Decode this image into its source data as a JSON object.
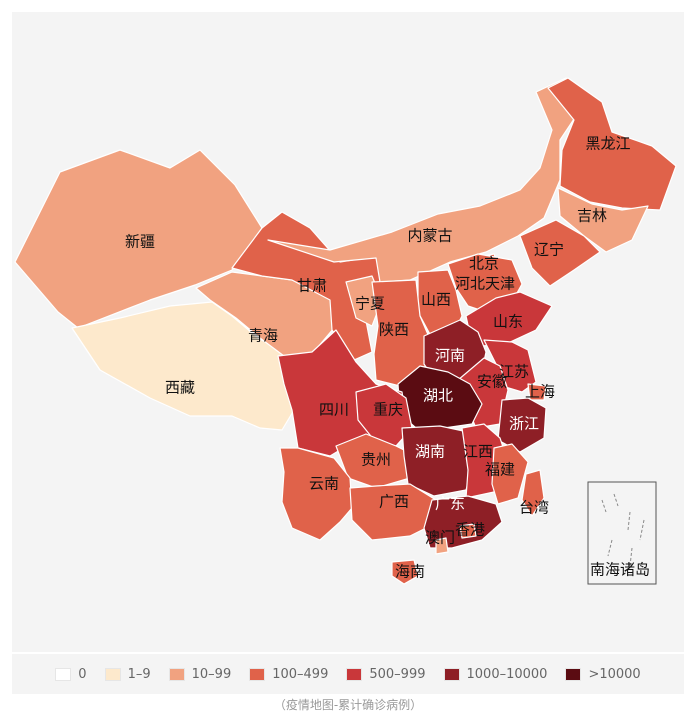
{
  "colors": {
    "c0": "#ffffff",
    "c1": "#fde9cc",
    "c2": "#f1a280",
    "c3": "#e0624a",
    "c4": "#c9373a",
    "c5": "#8e1f26",
    "c6": "#5b0c12"
  },
  "legend": [
    {
      "label": "0",
      "color": "#ffffff"
    },
    {
      "label": "1–9",
      "color": "#fde9cc"
    },
    {
      "label": "10–99",
      "color": "#f1a280"
    },
    {
      "label": "100–499",
      "color": "#e0624a"
    },
    {
      "label": "500–999",
      "color": "#c9373a"
    },
    {
      "label": "1000–10000",
      "color": "#8e1f26"
    },
    {
      "label": ">10000",
      "color": "#5b0c12"
    }
  ],
  "provinces": [
    {
      "id": "xinjiang",
      "name": "新疆",
      "level": 2
    },
    {
      "id": "xizang",
      "name": "西藏",
      "level": 1
    },
    {
      "id": "qinghai",
      "name": "青海",
      "level": 2
    },
    {
      "id": "gansu",
      "name": "甘肃",
      "level": 3
    },
    {
      "id": "neimenggu",
      "name": "内蒙古",
      "level": 2
    },
    {
      "id": "heilongjiang",
      "name": "黑龙江",
      "level": 3
    },
    {
      "id": "jilin",
      "name": "吉林",
      "level": 2
    },
    {
      "id": "liaoning",
      "name": "辽宁",
      "level": 3
    },
    {
      "id": "beijing",
      "name": "北京",
      "level": 3
    },
    {
      "id": "tianjin",
      "name": "天津",
      "level": 3
    },
    {
      "id": "hebei",
      "name": "河北",
      "level": 3
    },
    {
      "id": "shanxi",
      "name": "山西",
      "level": 3
    },
    {
      "id": "ningxia",
      "name": "宁夏",
      "level": 2
    },
    {
      "id": "shaanxi",
      "name": "陕西",
      "level": 3
    },
    {
      "id": "shandong",
      "name": "山东",
      "level": 4
    },
    {
      "id": "henan",
      "name": "河南",
      "level": 5
    },
    {
      "id": "jiangsu",
      "name": "江苏",
      "level": 4
    },
    {
      "id": "anhui",
      "name": "安徽",
      "level": 4
    },
    {
      "id": "shanghai",
      "name": "上海",
      "level": 3
    },
    {
      "id": "zhejiang",
      "name": "浙江",
      "level": 5
    },
    {
      "id": "hubei",
      "name": "湖北",
      "level": 6
    },
    {
      "id": "sichuan",
      "name": "四川",
      "level": 4
    },
    {
      "id": "chongqing",
      "name": "重庆",
      "level": 4
    },
    {
      "id": "guizhou",
      "name": "贵州",
      "level": 3
    },
    {
      "id": "hunan",
      "name": "湖南",
      "level": 5
    },
    {
      "id": "jiangxi",
      "name": "江西",
      "level": 4
    },
    {
      "id": "fujian",
      "name": "福建",
      "level": 3
    },
    {
      "id": "yunnan",
      "name": "云南",
      "level": 3
    },
    {
      "id": "guangxi",
      "name": "广西",
      "level": 3
    },
    {
      "id": "guangdong",
      "name": "广东",
      "level": 5
    },
    {
      "id": "xianggang",
      "name": "香港",
      "level": 3
    },
    {
      "id": "aomen",
      "name": "澳门",
      "level": 2
    },
    {
      "id": "taiwan",
      "name": "台湾",
      "level": 3
    },
    {
      "id": "hainan",
      "name": "海南",
      "level": 3
    }
  ],
  "inset_label": "南海诸岛",
  "caption": "（疫情地图-累计确诊病例）"
}
